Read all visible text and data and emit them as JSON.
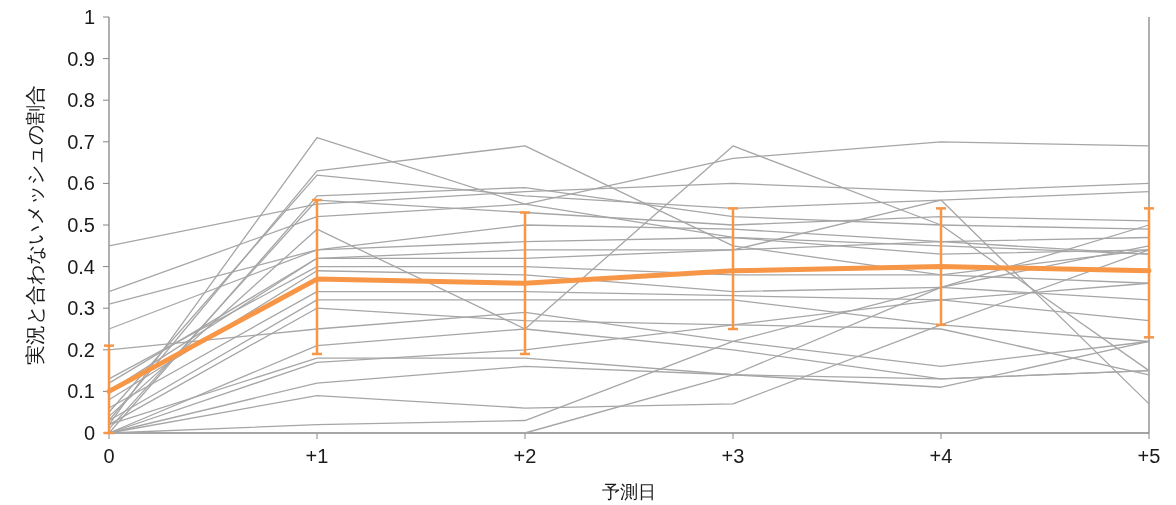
{
  "chart_data": {
    "type": "line",
    "xlabel": "予測日",
    "ylabel": "実況と合わないメッシュの割合",
    "categories": [
      "0",
      "+1",
      "+2",
      "+3",
      "+4",
      "+5"
    ],
    "ylim": [
      0,
      1
    ],
    "yticks": [
      0,
      0.1,
      0.2,
      0.3,
      0.4,
      0.5,
      0.6,
      0.7,
      0.8,
      0.9,
      1
    ],
    "grid": false,
    "marker": "none",
    "series": [
      {
        "color": "#a6a6a6",
        "values": [
          0.02,
          0.71,
          0.55,
          0.47,
          0.45,
          0.43
        ]
      },
      {
        "color": "#a6a6a6",
        "values": [
          0.45,
          0.55,
          0.58,
          0.6,
          0.58,
          0.6
        ]
      },
      {
        "color": "#a6a6a6",
        "values": [
          0.03,
          0.63,
          0.69,
          0.45,
          0.38,
          0.44
        ]
      },
      {
        "color": "#a6a6a6",
        "values": [
          0.05,
          0.62,
          0.57,
          0.54,
          0.56,
          0.58
        ]
      },
      {
        "color": "#a6a6a6",
        "values": [
          0.0,
          0.57,
          0.59,
          0.52,
          0.5,
          0.49
        ]
      },
      {
        "color": "#a6a6a6",
        "values": [
          0.01,
          0.56,
          0.53,
          0.5,
          0.52,
          0.51
        ]
      },
      {
        "color": "#a6a6a6",
        "values": [
          0.34,
          0.52,
          0.55,
          0.66,
          0.7,
          0.69
        ]
      },
      {
        "color": "#a6a6a6",
        "values": [
          0.04,
          0.49,
          0.25,
          0.69,
          0.5,
          0.15
        ]
      },
      {
        "color": "#a6a6a6",
        "values": [
          0.31,
          0.44,
          0.5,
          0.49,
          0.46,
          0.47
        ]
      },
      {
        "color": "#a6a6a6",
        "values": [
          0.25,
          0.44,
          0.46,
          0.47,
          0.43,
          0.44
        ]
      },
      {
        "color": "#a6a6a6",
        "values": [
          0.12,
          0.42,
          0.44,
          0.44,
          0.46,
          0.43
        ]
      },
      {
        "color": "#a6a6a6",
        "values": [
          0.1,
          0.42,
          0.42,
          0.44,
          0.56,
          0.07
        ]
      },
      {
        "color": "#a6a6a6",
        "values": [
          0.13,
          0.4,
          0.4,
          0.38,
          0.38,
          0.36
        ]
      },
      {
        "color": "#a6a6a6",
        "values": [
          0.08,
          0.39,
          0.38,
          0.34,
          0.35,
          0.32
        ]
      },
      {
        "color": "#a6a6a6",
        "values": [
          0.06,
          0.34,
          0.34,
          0.33,
          0.32,
          0.27
        ]
      },
      {
        "color": "#a6a6a6",
        "values": [
          0.03,
          0.32,
          0.32,
          0.32,
          0.26,
          0.22
        ]
      },
      {
        "color": "#a6a6a6",
        "values": [
          0.02,
          0.3,
          0.27,
          0.26,
          0.25,
          0.14
        ]
      },
      {
        "color": "#a6a6a6",
        "values": [
          0.2,
          0.25,
          0.29,
          0.22,
          0.16,
          0.22
        ]
      },
      {
        "color": "#a6a6a6",
        "values": [
          0.0,
          0.21,
          0.25,
          0.2,
          0.13,
          0.15
        ]
      },
      {
        "color": "#a6a6a6",
        "values": [
          0.02,
          0.18,
          0.18,
          0.14,
          0.11,
          0.22
        ]
      },
      {
        "color": "#a6a6a6",
        "values": [
          0.0,
          0.17,
          0.2,
          0.26,
          0.32,
          0.36
        ]
      },
      {
        "color": "#a6a6a6",
        "values": [
          0.0,
          0.12,
          0.16,
          0.14,
          0.13,
          0.15
        ]
      },
      {
        "color": "#a6a6a6",
        "values": [
          0.0,
          0.09,
          0.06,
          0.07,
          0.26,
          0.44
        ]
      },
      {
        "color": "#a6a6a6",
        "values": [
          0.0,
          0.02,
          0.03,
          0.22,
          0.35,
          0.45
        ]
      },
      {
        "color": "#a6a6a6",
        "values": [
          0.0,
          0.0,
          0.0,
          0.14,
          0.35,
          0.5
        ]
      },
      {
        "color": "#f79646",
        "values": [
          0.1,
          0.37,
          0.36,
          0.39,
          0.4,
          0.39
        ],
        "errors": [
          [
            0,
            0.21
          ],
          [
            0.19,
            0.56
          ],
          [
            0.19,
            0.53
          ],
          [
            0.25,
            0.54
          ],
          [
            0.26,
            0.54
          ],
          [
            0.23,
            0.54
          ]
        ]
      }
    ]
  }
}
